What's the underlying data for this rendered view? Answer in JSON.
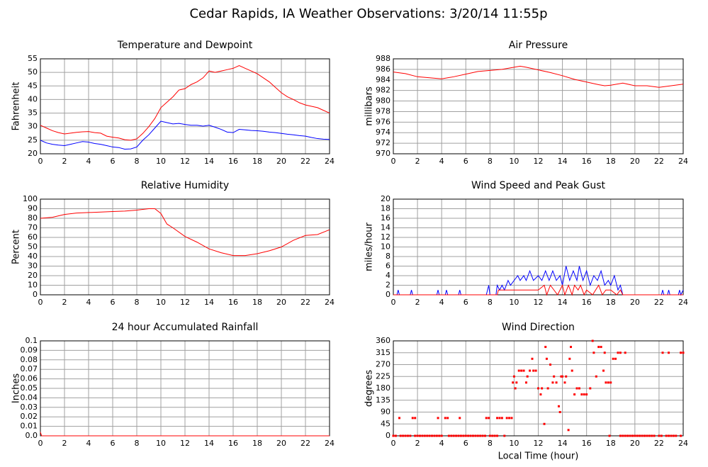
{
  "title": "Cedar Rapids, IA Weather Observations: 3/20/14 11:55p",
  "chart_data": [
    {
      "type": "line",
      "title": "Temperature and Dewpoint",
      "ylabel": "Fahrenheit",
      "xlim": [
        0,
        24
      ],
      "xticks": [
        0,
        2,
        4,
        6,
        8,
        10,
        12,
        14,
        16,
        18,
        20,
        22,
        24
      ],
      "ylim": [
        20,
        55
      ],
      "yticks": [
        20,
        25,
        30,
        35,
        40,
        45,
        50,
        55
      ],
      "grid": true,
      "x": [
        0,
        0.5,
        1,
        1.5,
        2,
        2.5,
        3,
        3.5,
        4,
        4.5,
        5,
        5.5,
        6,
        6.5,
        7,
        7.5,
        8,
        8.5,
        9,
        9.5,
        10,
        10.5,
        11,
        11.5,
        12,
        12.5,
        13,
        13.5,
        14,
        14.5,
        15,
        15.5,
        16,
        16.5,
        17,
        17.5,
        18,
        18.5,
        19,
        19.5,
        20,
        20.5,
        21,
        21.5,
        22,
        22.5,
        23,
        23.5,
        24
      ],
      "series": [
        {
          "color": "#ff0000",
          "values": [
            30.5,
            29.5,
            28.5,
            27.8,
            27.3,
            27.6,
            27.9,
            28.1,
            28.2,
            27.8,
            27.6,
            26.5,
            26.1,
            25.8,
            25.2,
            25,
            25.5,
            27.5,
            30,
            33,
            37,
            39,
            41,
            43.5,
            44,
            45.5,
            46.5,
            48,
            50.5,
            50,
            50.5,
            51,
            51.5,
            52.5,
            51.5,
            50.5,
            49.5,
            48,
            46.5,
            44.5,
            42.5,
            41,
            40,
            38.8,
            38,
            37.5,
            37,
            36,
            35
          ]
        },
        {
          "color": "#0000ff",
          "values": [
            25,
            24,
            23.5,
            23.2,
            23,
            23.5,
            24,
            24.5,
            24.3,
            23.8,
            23.5,
            23,
            22.5,
            22.3,
            21.7,
            21.8,
            22.5,
            25,
            27,
            29.5,
            32,
            31.5,
            31,
            31.2,
            30.8,
            30.5,
            30.5,
            30.2,
            30.5,
            29.8,
            29,
            28,
            27.8,
            29,
            28.8,
            28.6,
            28.5,
            28.3,
            28,
            27.8,
            27.5,
            27.2,
            27,
            26.7,
            26.5,
            26,
            25.6,
            25.4,
            25.3
          ]
        }
      ]
    },
    {
      "type": "line",
      "title": "Air Pressure",
      "ylabel": "millibars",
      "xlim": [
        0,
        24
      ],
      "xticks": [
        0,
        2,
        4,
        6,
        8,
        10,
        12,
        14,
        16,
        18,
        20,
        22,
        24
      ],
      "ylim": [
        970,
        988
      ],
      "yticks": [
        970,
        972,
        974,
        976,
        978,
        980,
        982,
        984,
        986,
        988
      ],
      "grid": true,
      "x": [
        0,
        1,
        2,
        3,
        4,
        5,
        6,
        7,
        8,
        9,
        10,
        10.5,
        11,
        12,
        13,
        14,
        15,
        16,
        17,
        17.5,
        18,
        19,
        20,
        21,
        22,
        23,
        24
      ],
      "series": [
        {
          "color": "#ff0000",
          "values": [
            985.5,
            985.2,
            984.6,
            984.4,
            984.2,
            984.6,
            985.1,
            985.6,
            985.8,
            986.0,
            986.4,
            986.6,
            986.4,
            985.9,
            985.4,
            984.8,
            984.1,
            983.6,
            983.1,
            982.9,
            983.0,
            983.4,
            982.9,
            982.9,
            982.6,
            982.9,
            983.2
          ]
        }
      ]
    },
    {
      "type": "line",
      "title": "Relative Humidity",
      "ylabel": "Percent",
      "xlim": [
        0,
        24
      ],
      "xticks": [
        0,
        2,
        4,
        6,
        8,
        10,
        12,
        14,
        16,
        18,
        20,
        22,
        24
      ],
      "ylim": [
        0,
        100
      ],
      "yticks": [
        0,
        10,
        20,
        30,
        40,
        50,
        60,
        70,
        80,
        90,
        100
      ],
      "grid": true,
      "x": [
        0,
        1,
        2,
        3,
        4,
        5,
        6,
        7,
        8,
        9,
        9.5,
        10,
        10.5,
        11,
        12,
        13,
        14,
        15,
        16,
        17,
        18,
        19,
        20,
        21,
        22,
        23,
        24
      ],
      "series": [
        {
          "color": "#ff0000",
          "values": [
            80,
            81,
            84,
            85.5,
            86,
            86.5,
            87,
            87.5,
            88.5,
            90,
            90,
            85,
            74,
            70,
            61,
            55,
            48,
            44,
            41,
            41,
            43,
            46,
            50,
            57,
            62,
            63,
            68
          ]
        }
      ]
    },
    {
      "type": "line",
      "title": "Wind Speed and Peak Gust",
      "ylabel": "miles/hour",
      "xlim": [
        0,
        24
      ],
      "xticks": [
        0,
        2,
        4,
        6,
        8,
        10,
        12,
        14,
        16,
        18,
        20,
        22,
        24
      ],
      "ylim": [
        0,
        20
      ],
      "yticks": [
        0,
        2,
        4,
        6,
        8,
        10,
        12,
        14,
        16,
        18,
        20
      ],
      "grid": true,
      "series": [
        {
          "color": "#0000ff",
          "x": [
            0,
            0.3,
            0.4,
            0.5,
            1.4,
            1.5,
            1.6,
            3.6,
            3.7,
            3.8,
            4.3,
            4.4,
            4.5,
            5.4,
            5.5,
            5.6,
            7.7,
            7.8,
            7.9,
            8,
            8.5,
            8.6,
            8.8,
            9,
            9.2,
            9.5,
            9.7,
            10,
            10.3,
            10.5,
            10.8,
            11,
            11.3,
            11.6,
            12,
            12.3,
            12.6,
            12.9,
            13.2,
            13.5,
            13.8,
            14,
            14.3,
            14.6,
            14.9,
            15.2,
            15.4,
            15.7,
            16,
            16.3,
            16.6,
            16.9,
            17.2,
            17.5,
            17.8,
            18,
            18.3,
            18.6,
            18.8,
            19,
            22.2,
            22.3,
            22.4,
            22.7,
            22.8,
            22.9,
            23.6,
            23.7,
            23.8,
            24
          ],
          "values": [
            0,
            0,
            1,
            0,
            0,
            1,
            0,
            0,
            1,
            0,
            0,
            1,
            0,
            0,
            1,
            0,
            0,
            1,
            2,
            0,
            0,
            2,
            1,
            2,
            1,
            3,
            2,
            3,
            4,
            3,
            4,
            3,
            5,
            3,
            4,
            3,
            5,
            3,
            5,
            3,
            4,
            2,
            6,
            3,
            5,
            3,
            6,
            3,
            5,
            2,
            4,
            3,
            5,
            2,
            3,
            2,
            4,
            1,
            2,
            0,
            0,
            1,
            0,
            0,
            1,
            0,
            0,
            1,
            0,
            1
          ]
        },
        {
          "color": "#ff0000",
          "x": [
            0,
            8.6,
            8.7,
            9,
            10.5,
            11,
            12,
            12.5,
            12.7,
            13,
            13.3,
            13.6,
            14,
            14.2,
            14.5,
            14.8,
            15,
            15.3,
            15.5,
            15.8,
            16,
            16.5,
            17,
            17.3,
            17.6,
            18,
            18.5,
            18.8,
            19,
            24
          ],
          "values": [
            0,
            0,
            1,
            1,
            1,
            1,
            1,
            2,
            0,
            2,
            1,
            0,
            2,
            0,
            2,
            0,
            2,
            1,
            2,
            0,
            1,
            0,
            2,
            0,
            1,
            1,
            0,
            1,
            0,
            0
          ]
        }
      ]
    },
    {
      "type": "line",
      "title": "24 hour Accumulated Rainfall",
      "ylabel": "Inches",
      "xlim": [
        0,
        24
      ],
      "xticks": [
        0,
        2,
        4,
        6,
        8,
        10,
        12,
        14,
        16,
        18,
        20,
        22,
        24
      ],
      "ylim": [
        0,
        0.1
      ],
      "yticks": [
        {
          "value": 0,
          "label": "0.0"
        },
        0.01,
        0.02,
        0.03,
        0.04,
        0.05,
        0.06,
        0.07,
        0.08,
        0.09,
        0.1
      ],
      "grid": true,
      "x": [
        0,
        0.1,
        24
      ],
      "values": [
        0.004,
        0,
        0
      ],
      "color": "#ff0000"
    },
    {
      "type": "scatter",
      "title": "Wind Direction",
      "ylabel": "degrees",
      "xlabel": "Local Time (hour)",
      "xlim": [
        0,
        24
      ],
      "xticks": [
        0,
        2,
        4,
        6,
        8,
        10,
        12,
        14,
        16,
        18,
        20,
        22,
        24
      ],
      "ylim": [
        0,
        360
      ],
      "yticks": [
        0,
        45,
        90,
        135,
        180,
        225,
        270,
        315,
        360
      ],
      "grid": true,
      "color": "#ff0000",
      "x": [
        0,
        0.2,
        0.6,
        0.8,
        1,
        1.2,
        1.4,
        1.8,
        2,
        2.2,
        2.4,
        2.6,
        2.8,
        3,
        3.2,
        3.4,
        3.6,
        3.8,
        4,
        4.6,
        4.8,
        5,
        5.2,
        5.4,
        5.6,
        5.8,
        6,
        6.2,
        6.4,
        6.6,
        6.8,
        7,
        7.2,
        7.4,
        7.6,
        8,
        8.2,
        8.4,
        8.6,
        9.2,
        17.9,
        18.8,
        19,
        19.2,
        19.4,
        19.6,
        19.8,
        20,
        20.2,
        20.4,
        20.6,
        20.8,
        21,
        21.2,
        21.4,
        21.6,
        22,
        22.2,
        22.6,
        22.8,
        23,
        23.2,
        23.4,
        23.8,
        0.5,
        1.6,
        1.8,
        3.7,
        4.3,
        4.5,
        5.5,
        7.7,
        7.9,
        8.6,
        8.8,
        9,
        9.4,
        9.6,
        9.8,
        9.9,
        10,
        10.1,
        10.2,
        10.4,
        10.6,
        10.8,
        11,
        11.1,
        11.3,
        11.5,
        11.6,
        11.8,
        12,
        12.2,
        12.3,
        12.5,
        12.6,
        12.7,
        12.8,
        13,
        13.2,
        13.3,
        13.5,
        13.7,
        13.8,
        13.9,
        14,
        14.2,
        14.3,
        14.5,
        14.6,
        14.7,
        14.8,
        15,
        15.2,
        15.4,
        15.6,
        15.8,
        16,
        16.3,
        16.5,
        16.6,
        16.8,
        17,
        17.2,
        17.4,
        17.5,
        17.6,
        17.8,
        18,
        18.2,
        18.4,
        18.6,
        18.8,
        19.2,
        22.3,
        22.8,
        23.8,
        24
      ],
      "values": [
        0,
        0,
        0,
        0,
        0,
        0,
        0,
        0,
        0,
        0,
        0,
        0,
        0,
        0,
        0,
        0,
        0,
        0,
        0,
        0,
        0,
        0,
        0,
        0,
        0,
        0,
        0,
        0,
        0,
        0,
        0,
        0,
        0,
        0,
        0,
        0,
        0,
        0,
        0,
        0,
        0,
        0,
        0,
        0,
        0,
        0,
        0,
        0,
        0,
        0,
        0,
        0,
        0,
        0,
        0,
        0,
        0,
        0,
        0,
        0,
        0,
        0,
        0,
        0,
        67.5,
        67.5,
        67.5,
        67.5,
        67.5,
        67.5,
        67.5,
        67.5,
        67.5,
        67.5,
        67.5,
        67.5,
        67.5,
        67.5,
        67.5,
        202,
        225,
        180,
        202,
        247,
        247,
        247,
        202,
        225,
        247,
        292,
        247,
        247,
        180,
        157,
        180,
        45,
        337,
        292,
        180,
        270,
        202,
        225,
        202,
        112,
        90,
        225,
        225,
        202,
        225,
        22,
        292,
        337,
        247,
        157,
        180,
        180,
        157,
        157,
        157,
        180,
        360,
        315,
        225,
        337,
        337,
        247,
        315,
        202,
        202,
        202,
        292,
        292,
        315,
        315,
        315,
        315,
        315,
        315,
        315
      ]
    }
  ]
}
